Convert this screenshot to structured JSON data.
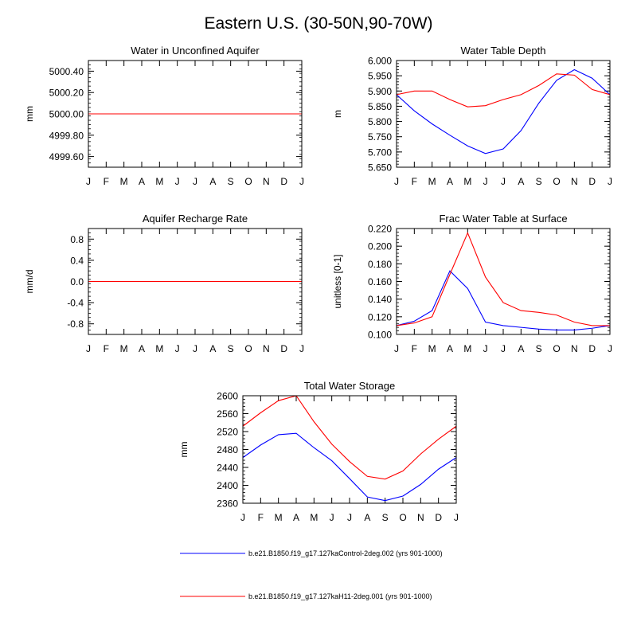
{
  "figure": {
    "title": "Eastern U.S. (30-50N,90-70W)",
    "colors": {
      "series1": "#0000ff",
      "series2": "#ff0000",
      "axis": "#000000"
    }
  },
  "legend": [
    {
      "label": "b.e21.B1850.f19_g17.127kaControl-2deg.002 (yrs 901-1000)",
      "color": "#0000ff"
    },
    {
      "label": "b.e21.B1850.f19_g17.127kaH11-2deg.001 (yrs 901-1000)",
      "color": "#ff0000"
    }
  ],
  "chart_data": [
    {
      "type": "line",
      "title": "Water in Unconfined Aquifer",
      "ylabel": "mm",
      "xlabel": "",
      "categories": [
        "J",
        "F",
        "M",
        "A",
        "M",
        "J",
        "J",
        "A",
        "S",
        "O",
        "N",
        "D",
        "J"
      ],
      "ylim": [
        4999.5,
        5000.5
      ],
      "yticks": [
        4999.6,
        4999.8,
        5000.0,
        5000.2,
        5000.4
      ],
      "ytick_labels": [
        "4999.60",
        "4999.80",
        "5000.00",
        "5000.20",
        "5000.40"
      ],
      "series": [
        {
          "values": [
            5000,
            5000,
            5000,
            5000,
            5000,
            5000,
            5000,
            5000,
            5000,
            5000,
            5000,
            5000,
            5000
          ]
        },
        {
          "values": [
            5000,
            5000,
            5000,
            5000,
            5000,
            5000,
            5000,
            5000,
            5000,
            5000,
            5000,
            5000,
            5000
          ]
        }
      ]
    },
    {
      "type": "line",
      "title": "Water Table Depth",
      "ylabel": "m",
      "xlabel": "",
      "categories": [
        "J",
        "F",
        "M",
        "A",
        "M",
        "J",
        "J",
        "A",
        "S",
        "O",
        "N",
        "D",
        "J"
      ],
      "ylim": [
        5.65,
        6.0
      ],
      "yticks": [
        5.65,
        5.7,
        5.75,
        5.8,
        5.85,
        5.9,
        5.95,
        6.0
      ],
      "ytick_labels": [
        "5.650",
        "5.700",
        "5.750",
        "5.800",
        "5.850",
        "5.900",
        "5.950",
        "6.000"
      ],
      "series": [
        {
          "values": [
            5.888,
            5.835,
            5.792,
            5.755,
            5.72,
            5.695,
            5.71,
            5.77,
            5.86,
            5.935,
            5.97,
            5.942,
            5.888
          ]
        },
        {
          "values": [
            5.888,
            5.9,
            5.9,
            5.872,
            5.848,
            5.852,
            5.872,
            5.888,
            5.918,
            5.956,
            5.952,
            5.905,
            5.888
          ]
        }
      ]
    },
    {
      "type": "line",
      "title": "Aquifer Recharge Rate",
      "ylabel": "mm/d",
      "xlabel": "",
      "categories": [
        "J",
        "F",
        "M",
        "A",
        "M",
        "J",
        "J",
        "A",
        "S",
        "O",
        "N",
        "D",
        "J"
      ],
      "ylim": [
        -1.0,
        1.0
      ],
      "yticks": [
        -0.8,
        -0.4,
        0.0,
        0.4,
        0.8
      ],
      "ytick_labels": [
        "-0.8",
        "-0.4",
        "0.0",
        "0.4",
        "0.8"
      ],
      "series": [
        {
          "values": [
            0,
            0,
            0,
            0,
            0,
            0,
            0,
            0,
            0,
            0,
            0,
            0,
            0
          ]
        },
        {
          "values": [
            0,
            0,
            0,
            0,
            0,
            0,
            0,
            0,
            0,
            0,
            0,
            0,
            0
          ]
        }
      ]
    },
    {
      "type": "line",
      "title": "Frac Water Table at Surface",
      "ylabel": "unitless [0-1]",
      "xlabel": "",
      "categories": [
        "J",
        "F",
        "M",
        "A",
        "M",
        "J",
        "J",
        "A",
        "S",
        "O",
        "N",
        "D",
        "J"
      ],
      "ylim": [
        0.1,
        0.22
      ],
      "yticks": [
        0.1,
        0.12,
        0.14,
        0.16,
        0.18,
        0.2,
        0.22
      ],
      "ytick_labels": [
        "0.100",
        "0.120",
        "0.140",
        "0.160",
        "0.180",
        "0.200",
        "0.220"
      ],
      "series": [
        {
          "values": [
            0.11,
            0.115,
            0.127,
            0.172,
            0.152,
            0.114,
            0.11,
            0.108,
            0.106,
            0.105,
            0.105,
            0.107,
            0.11
          ]
        },
        {
          "values": [
            0.11,
            0.113,
            0.12,
            0.168,
            0.215,
            0.165,
            0.136,
            0.127,
            0.125,
            0.122,
            0.114,
            0.11,
            0.11
          ]
        }
      ]
    },
    {
      "type": "line",
      "title": "Total Water Storage",
      "ylabel": "mm",
      "xlabel": "",
      "categories": [
        "J",
        "F",
        "M",
        "A",
        "M",
        "J",
        "J",
        "A",
        "S",
        "O",
        "N",
        "D",
        "J"
      ],
      "ylim": [
        2360,
        2600
      ],
      "yticks": [
        2360,
        2400,
        2440,
        2480,
        2520,
        2560,
        2600
      ],
      "ytick_labels": [
        "2360",
        "2400",
        "2440",
        "2480",
        "2520",
        "2560",
        "2600"
      ],
      "series": [
        {
          "values": [
            2462,
            2490,
            2513,
            2516,
            2484,
            2455,
            2415,
            2374,
            2366,
            2376,
            2402,
            2436,
            2462
          ]
        },
        {
          "values": [
            2532,
            2562,
            2589,
            2600,
            2542,
            2492,
            2453,
            2420,
            2414,
            2432,
            2470,
            2503,
            2532
          ]
        }
      ]
    }
  ]
}
